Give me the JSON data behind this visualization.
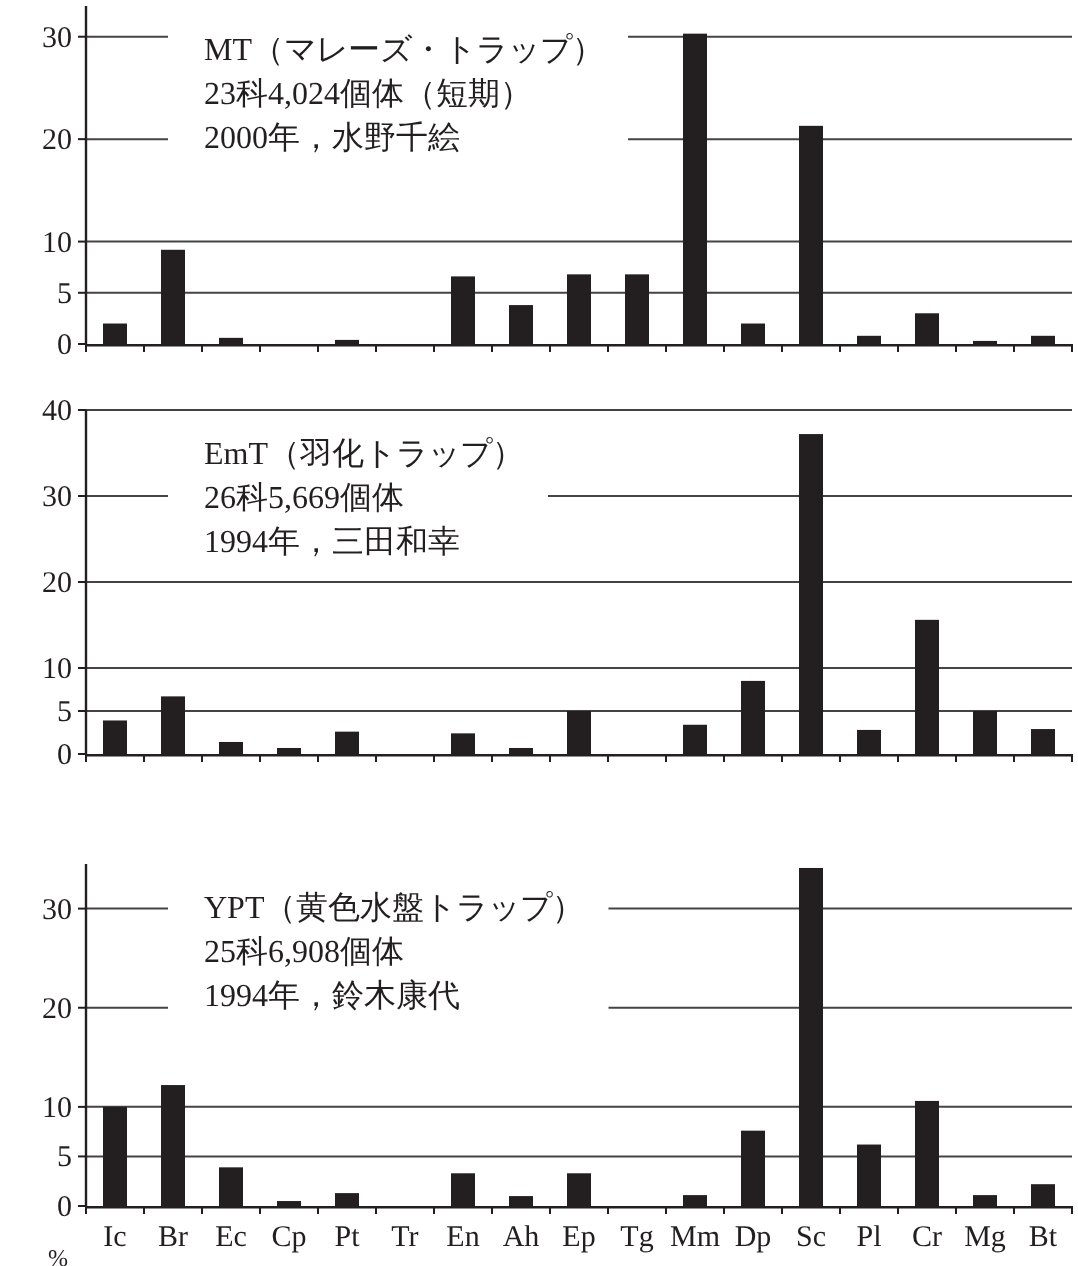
{
  "chart_data": [
    {
      "type": "bar",
      "categories": [
        "Ic",
        "Br",
        "Ec",
        "Cp",
        "Pt",
        "Tr",
        "En",
        "Ah",
        "Ep",
        "Tg",
        "Mm",
        "Dp",
        "Sc",
        "Pl",
        "Cr",
        "Mg",
        "Bt"
      ],
      "values": [
        2,
        9.2,
        0.6,
        0,
        0.4,
        0,
        6.6,
        3.8,
        6.8,
        6.8,
        30.3,
        2,
        21.3,
        0.8,
        3,
        0.3,
        0.8
      ],
      "color": "#231f20",
      "ylim": [
        0,
        33
      ],
      "yticks": [
        0,
        5,
        10,
        20,
        30
      ],
      "grid": "y",
      "tick_labels": "y",
      "annotations": [
        "MT（マレーズ・トラップ）",
        "23科4,024個体（短期）",
        "2000年，水野千絵"
      ]
    },
    {
      "type": "bar",
      "categories": [
        "Ic",
        "Br",
        "Ec",
        "Cp",
        "Pt",
        "Tr",
        "En",
        "Ah",
        "Ep",
        "Tg",
        "Mm",
        "Dp",
        "Sc",
        "Pl",
        "Cr",
        "Mg",
        "Bt"
      ],
      "values": [
        3.9,
        6.7,
        1.4,
        0.7,
        2.6,
        0,
        2.4,
        0.7,
        5,
        0,
        3.4,
        8.5,
        37.2,
        2.8,
        15.6,
        5,
        2.9
      ],
      "color": "#231f20",
      "ylim": [
        0,
        40
      ],
      "yticks": [
        0,
        5,
        10,
        20,
        30,
        40
      ],
      "grid": "y",
      "tick_labels": "y",
      "annotations": [
        "EmT（羽化トラップ）",
        "26科5,669個体",
        "1994年，三田和幸"
      ]
    },
    {
      "type": "bar",
      "categories": [
        "Ic",
        "Br",
        "Ec",
        "Cp",
        "Pt",
        "Tr",
        "En",
        "Ah",
        "Ep",
        "Tg",
        "Mm",
        "Dp",
        "Sc",
        "Pl",
        "Cr",
        "Mg",
        "Bt"
      ],
      "values": [
        10,
        12.2,
        3.9,
        0.5,
        1.3,
        0,
        3.3,
        1,
        3.3,
        0,
        1.1,
        7.6,
        34.1,
        6.2,
        10.6,
        1.1,
        2.2
      ],
      "color": "#231f20",
      "ylim": [
        0,
        34.5
      ],
      "yticks": [
        0,
        5,
        10,
        20,
        30
      ],
      "grid": "y",
      "ylabel": "%",
      "annotations": [
        "YPT（黄色水盤トラップ）",
        "25科6,908個体",
        "1994年，鈴木康代"
      ]
    }
  ]
}
